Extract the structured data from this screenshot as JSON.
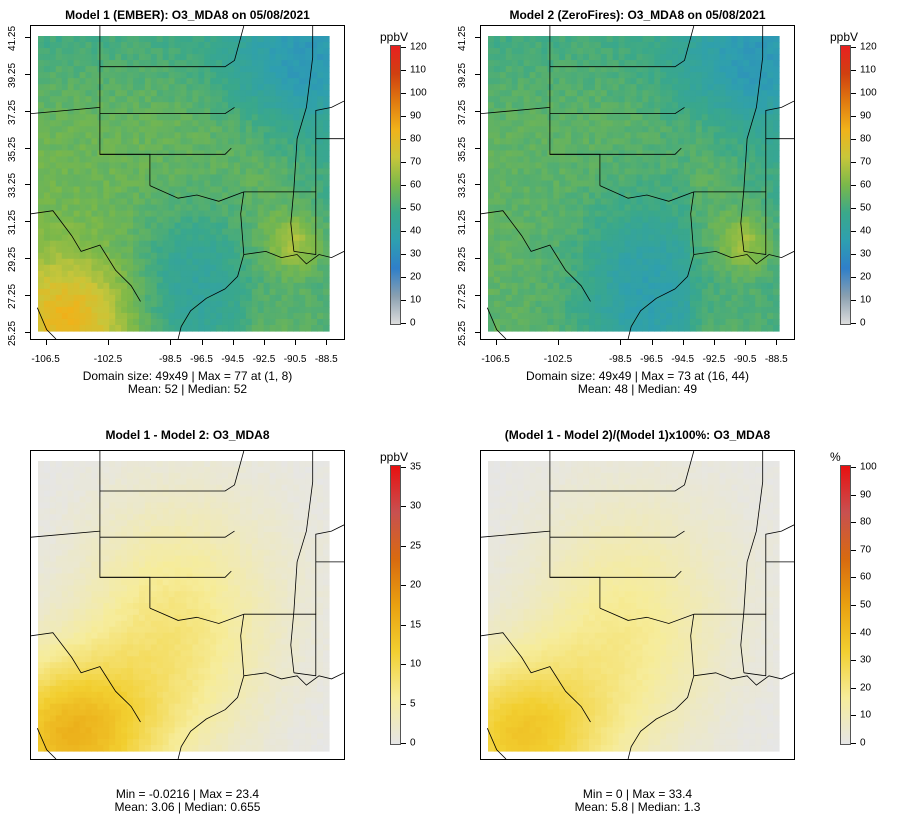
{
  "panels": [
    {
      "title": "Model 1 (EMBER): O3_MDA8 on 05/08/2021",
      "unit": "ppbV",
      "colorbar_ticks": [
        "120",
        "110",
        "100",
        "90",
        "80",
        "70",
        "60",
        "50",
        "40",
        "30",
        "20",
        "10",
        "0"
      ],
      "colorbar_type": "ozone",
      "stats_line1": "Domain size: 49x49 | Max = 77 at (1, 8)",
      "stats_line2": "Mean: 52 |  Median: 52",
      "field": "model1",
      "show_axes": true
    },
    {
      "title": "Model 2 (ZeroFires): O3_MDA8 on 05/08/2021",
      "unit": "ppbV",
      "colorbar_ticks": [
        "120",
        "110",
        "100",
        "90",
        "80",
        "70",
        "60",
        "50",
        "40",
        "30",
        "20",
        "10",
        "0"
      ],
      "colorbar_type": "ozone",
      "stats_line1": "Domain size: 49x49 | Max = 73 at (16, 44)",
      "stats_line2": "Mean: 48 |  Median: 49",
      "field": "model2",
      "show_axes": true
    },
    {
      "title": "Model 1 - Model 2: O3_MDA8",
      "unit": "ppbV",
      "colorbar_ticks": [
        "35",
        "30",
        "25",
        "20",
        "15",
        "10",
        "5",
        "0"
      ],
      "colorbar_type": "diff",
      "stats_line1": "Min = -0.0216 | Max = 23.4",
      "stats_line2": "Mean: 3.06 |  Median: 0.655",
      "field": "diff",
      "show_axes": false
    },
    {
      "title": "(Model 1 - Model 2)/(Model 1)x100%: O3_MDA8",
      "unit": "%",
      "colorbar_ticks": [
        "100",
        "90",
        "80",
        "70",
        "60",
        "50",
        "40",
        "30",
        "20",
        "10",
        "0"
      ],
      "colorbar_type": "diff",
      "stats_line1": "Min = 0 | Max = 33.4",
      "stats_line2": "Mean: 5.8 |  Median: 1.3",
      "field": "pct",
      "show_axes": false
    }
  ],
  "axes": {
    "x_ticks": [
      "-106.5",
      "-102.5",
      "-98.5",
      "-96.5",
      "-94.5",
      "-92.5",
      "-90.5",
      "-88.5"
    ],
    "x_values": [
      -106.5,
      -102.5,
      -98.5,
      -96.5,
      -94.5,
      -92.5,
      -90.5,
      -88.5
    ],
    "y_ticks": [
      "41.25",
      "39.25",
      "37.25",
      "35.25",
      "33.25",
      "31.25",
      "29.25",
      "27.25",
      "25.25"
    ],
    "y_values": [
      41.25,
      39.25,
      37.25,
      35.25,
      33.25,
      31.25,
      29.25,
      27.25,
      25.25
    ],
    "lon_range": [
      -107.5,
      -87.3
    ],
    "lat_range": [
      24.8,
      41.9
    ]
  },
  "colors": {
    "ozone_stops": [
      "#dddddd",
      "#8aa0b0",
      "#2f7fc9",
      "#2e9fb0",
      "#3aa88a",
      "#7ab84a",
      "#c8c63a",
      "#f0b21a",
      "#e07a10",
      "#d04010",
      "#e82020"
    ],
    "diff_stops": [
      "#e6e6e6",
      "#f6ec9a",
      "#f2cf30",
      "#e8a010",
      "#d86a10",
      "#c85050",
      "#e81010"
    ]
  }
}
